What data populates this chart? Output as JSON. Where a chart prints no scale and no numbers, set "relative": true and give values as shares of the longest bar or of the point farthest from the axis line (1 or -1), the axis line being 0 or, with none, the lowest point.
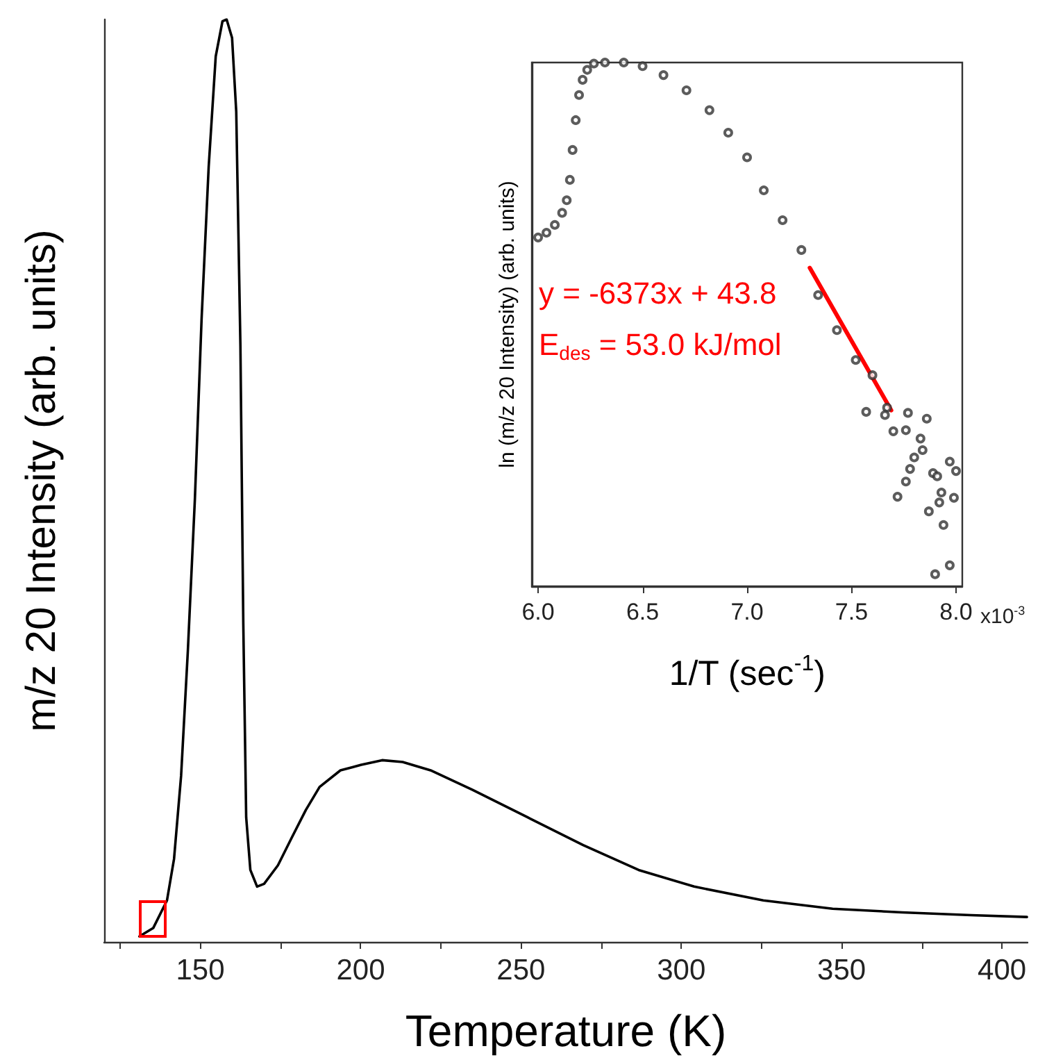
{
  "chart_data": [
    {
      "type": "line",
      "xlabel": "Temperature (K)",
      "ylabel": "m/z 20 Intensity (arb. units)",
      "relative": true,
      "marker": "none",
      "color": "#000000",
      "xlim": [
        120,
        408
      ],
      "xticks": [
        {
          "value": 125,
          "label": null
        },
        150,
        {
          "value": 175,
          "label": null
        },
        200,
        {
          "value": 225,
          "label": null
        },
        250,
        {
          "value": 275,
          "label": null
        },
        300,
        {
          "value": 325,
          "label": null
        },
        350,
        {
          "value": 375,
          "label": null
        },
        400
      ],
      "x": [
        131,
        135.3,
        139.6,
        141.8,
        144,
        146.1,
        148.3,
        150.4,
        152.6,
        154.8,
        156.9,
        158.2,
        159.9,
        161.2,
        162.5,
        163.4,
        164.3,
        165.6,
        167.7,
        169.9,
        174.2,
        178.5,
        182.9,
        187.2,
        193.7,
        200.2,
        206.7,
        213.1,
        221.8,
        234.8,
        252.1,
        269.4,
        286.7,
        304,
        325.6,
        347.2,
        368.9,
        390.5,
        407.8
      ],
      "values": [
        0.006,
        0.015,
        0.045,
        0.09,
        0.18,
        0.315,
        0.48,
        0.676,
        0.84,
        0.96,
        0.998,
        1,
        0.98,
        0.9,
        0.646,
        0.345,
        0.135,
        0.078,
        0.06,
        0.063,
        0.083,
        0.113,
        0.143,
        0.168,
        0.186,
        0.192,
        0.197,
        0.195,
        0.186,
        0.165,
        0.135,
        0.105,
        0.078,
        0.06,
        0.045,
        0.036,
        0.032,
        0.029,
        0.027
      ]
    },
    {
      "type": "scatter",
      "xlabel": "1/T (sec$^{-1}$)",
      "ylabel": "ln (m/z 20 Intensity) (arb. units)",
      "relative": true,
      "xlim": [
        5.97,
        8.03
      ],
      "xticks": [
        {
          "value": 6,
          "label": "6.0"
        },
        6.5,
        {
          "value": 7,
          "label": "7.0"
        },
        7.5,
        {
          "value": 8,
          "label": "8.0"
        }
      ],
      "annotations": [
        "y = -6373x + 43.8",
        "E$_{des}$ = 53.0 kJ/mol",
        "x10$^{-3}$"
      ],
      "series": [
        {
          "color": "#333333",
          "marker": "circle",
          "x": [
            6.0,
            6.04,
            6.08,
            6.115,
            6.137,
            6.152,
            6.165,
            6.18,
            6.196,
            6.213,
            6.235,
            6.267,
            6.32,
            6.41,
            6.5,
            6.6,
            6.71,
            6.82,
            6.91,
            7.0,
            7.08,
            7.17,
            7.26,
            7.34,
            7.43,
            7.52,
            7.6,
            7.67,
            7.57,
            7.66,
            7.77,
            7.86,
            7.7,
            7.76,
            7.83,
            7.84,
            7.8,
            7.78,
            7.89,
            7.91,
            7.76,
            8.0,
            7.97,
            7.72,
            7.93,
            7.99,
            7.92,
            7.87,
            7.94,
            7.97,
            7.9
          ],
          "values": [
            0.666,
            0.675,
            0.69,
            0.713,
            0.737,
            0.776,
            0.833,
            0.89,
            0.938,
            0.967,
            0.986,
            0.998,
            1,
            1,
            0.993,
            0.976,
            0.947,
            0.909,
            0.866,
            0.819,
            0.756,
            0.699,
            0.642,
            0.556,
            0.489,
            0.432,
            0.403,
            0.341,
            0.333,
            0.327,
            0.331,
            0.32,
            0.296,
            0.298,
            0.282,
            0.26,
            0.246,
            0.224,
            0.216,
            0.21,
            0.2,
            0.22,
            0.238,
            0.171,
            0.179,
            0.169,
            0.16,
            0.143,
            0.117,
            0.04,
            0.023
          ]
        },
        {
          "type": "line",
          "color": "#ff0000",
          "marker": "none",
          "x": [
            7.3,
            7.69
          ],
          "values": [
            0.608,
            0.336
          ]
        }
      ]
    }
  ]
}
